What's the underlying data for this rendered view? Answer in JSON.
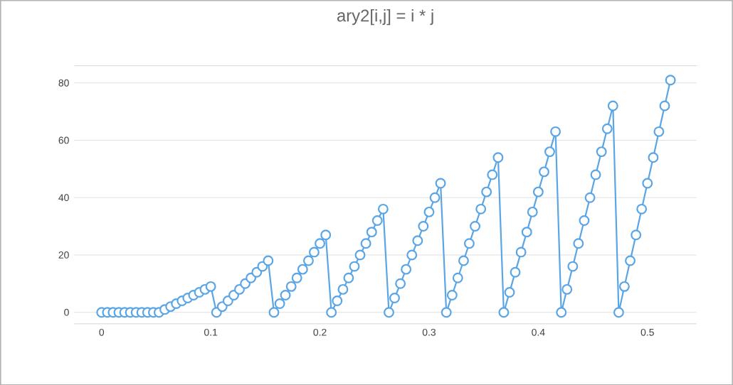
{
  "chart_data": {
    "type": "line",
    "title": "ary2[i,j] = i * j",
    "x": [
      0,
      0.0053,
      0.0105,
      0.0158,
      0.0211,
      0.0263,
      0.0316,
      0.0368,
      0.0421,
      0.0474,
      0.0526,
      0.0579,
      0.0632,
      0.0684,
      0.0737,
      0.0789,
      0.0842,
      0.0895,
      0.0947,
      0.1,
      0.1053,
      0.1105,
      0.1158,
      0.1211,
      0.1263,
      0.1316,
      0.1368,
      0.1421,
      0.1474,
      0.1526,
      0.1579,
      0.1632,
      0.1684,
      0.1737,
      0.1789,
      0.1842,
      0.1895,
      0.1947,
      0.2,
      0.2053,
      0.2105,
      0.2158,
      0.2211,
      0.2263,
      0.2316,
      0.2368,
      0.2421,
      0.2474,
      0.2526,
      0.2579,
      0.2632,
      0.2684,
      0.2737,
      0.2789,
      0.2842,
      0.2895,
      0.2947,
      0.3,
      0.3053,
      0.3105,
      0.3158,
      0.3211,
      0.3263,
      0.3316,
      0.3368,
      0.3421,
      0.3474,
      0.3526,
      0.3579,
      0.3632,
      0.3684,
      0.3737,
      0.3789,
      0.3842,
      0.3895,
      0.3947,
      0.4,
      0.4053,
      0.4105,
      0.4158,
      0.4211,
      0.4263,
      0.4316,
      0.4368,
      0.4421,
      0.4474,
      0.4526,
      0.4579,
      0.4632,
      0.4684,
      0.4737,
      0.4789,
      0.4842,
      0.4895,
      0.4947,
      0.5,
      0.5053,
      0.5105,
      0.5158,
      0.5211
    ],
    "values": [
      0,
      0,
      0,
      0,
      0,
      0,
      0,
      0,
      0,
      0,
      0,
      1,
      2,
      3,
      4,
      5,
      6,
      7,
      8,
      9,
      0,
      2,
      4,
      6,
      8,
      10,
      12,
      14,
      16,
      18,
      0,
      3,
      6,
      9,
      12,
      15,
      18,
      21,
      24,
      27,
      0,
      4,
      8,
      12,
      16,
      20,
      24,
      28,
      32,
      36,
      0,
      5,
      10,
      15,
      20,
      25,
      30,
      35,
      40,
      45,
      0,
      6,
      12,
      18,
      24,
      30,
      36,
      42,
      48,
      54,
      0,
      7,
      14,
      21,
      28,
      35,
      42,
      49,
      56,
      63,
      0,
      8,
      16,
      24,
      32,
      40,
      48,
      56,
      64,
      72,
      0,
      9,
      18,
      27,
      36,
      45,
      54,
      63,
      72,
      81
    ],
    "color": "#5aa5e6",
    "marker": "circle",
    "line_style": "solid",
    "grid": "y",
    "xlim": [
      -0.025,
      0.545
    ],
    "ylim": [
      -4,
      86
    ],
    "xticks": [
      0,
      0.1,
      0.2,
      0.3,
      0.4,
      0.5
    ],
    "yticks": [
      0,
      20,
      40,
      60,
      80
    ]
  }
}
